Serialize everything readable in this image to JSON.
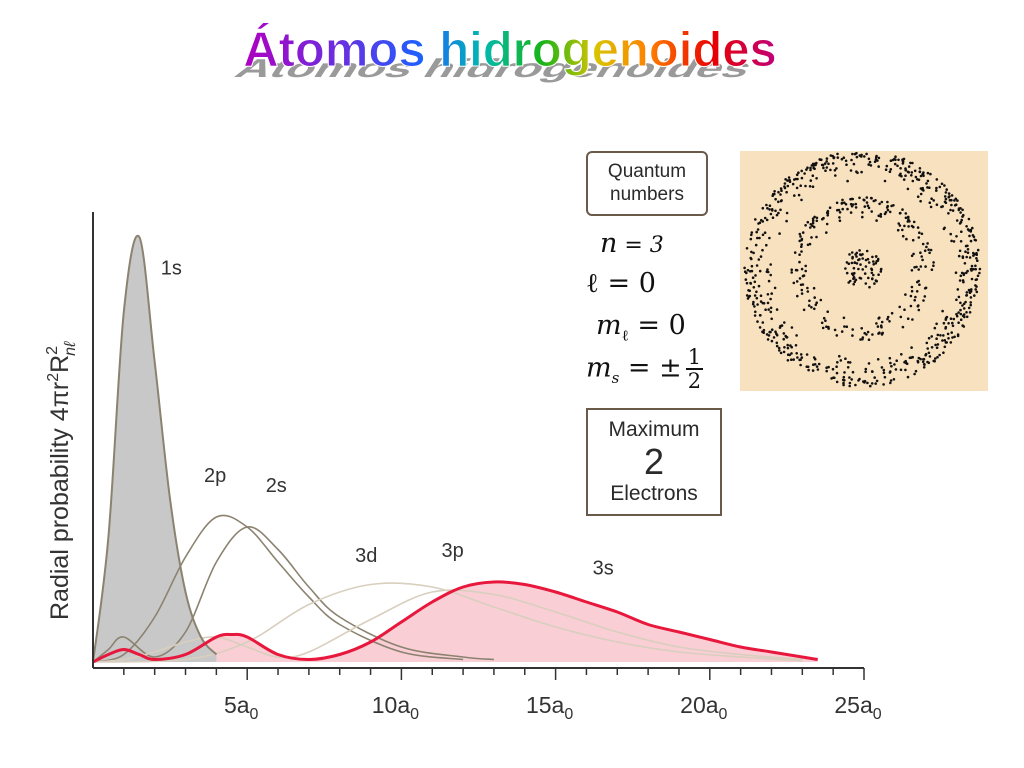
{
  "title": "Átomos hidrogenoides",
  "quantum_box": {
    "line1": "Quantum",
    "line2": "numbers"
  },
  "quantum_numbers": {
    "n_symbol": "n",
    "n_eq": " = 3",
    "l_symbol": "ℓ",
    "l_eq": " = 0",
    "ml_symbol": "m",
    "ml_sub": "ℓ",
    "ml_eq": " = 0",
    "ms_symbol": "m",
    "ms_sub": "s",
    "ms_eq": " = ±",
    "ms_num": "1",
    "ms_den": "2"
  },
  "max_box": {
    "line1": "Maximum",
    "number": "2",
    "line3": "Electrons"
  },
  "colors": {
    "filled_1s": "#c8c8c8",
    "curve_2": "#8c8270",
    "curve_3": "#d8cfbe",
    "highlight": "#e8173c",
    "highlight_fill": "#f9c6ce",
    "orbital_bg": "#f8e1bf"
  },
  "chart_data": {
    "type": "line",
    "title": "",
    "xlabel": "",
    "ylabel": "Radial probability 4πr²R²nℓ",
    "ylabel_main": "Radial probability 4πr",
    "ylabel_sup": "2",
    "ylabel_R": "R",
    "ylabel_sup2": "2",
    "ylabel_sub": "nℓ",
    "xlim": [
      0,
      25
    ],
    "x_unit": "a0",
    "xticks": [
      {
        "value": 5,
        "label": "5a",
        "sub": "0"
      },
      {
        "value": 10,
        "label": "10a",
        "sub": "0"
      },
      {
        "value": 15,
        "label": "15a",
        "sub": "0"
      },
      {
        "value": 20,
        "label": "20a",
        "sub": "0"
      },
      {
        "value": 25,
        "label": "25a",
        "sub": "0"
      }
    ],
    "series": [
      {
        "name": "1s",
        "label_x": 2.2,
        "label_y": 1.55,
        "x": [
          0,
          0.5,
          1,
          1.5,
          2,
          2.5,
          3,
          3.5,
          4
        ],
        "y": [
          0,
          0.5,
          1.4,
          1.7,
          1.2,
          0.65,
          0.28,
          0.1,
          0.03
        ]
      },
      {
        "name": "2p",
        "label_x": 3.6,
        "label_y": 0.72,
        "x": [
          0,
          1,
          2,
          3,
          4,
          5,
          6,
          7,
          8,
          10,
          12
        ],
        "y": [
          0,
          0.03,
          0.18,
          0.42,
          0.58,
          0.54,
          0.4,
          0.26,
          0.15,
          0.04,
          0.01
        ]
      },
      {
        "name": "2s",
        "label_x": 5.6,
        "label_y": 0.68,
        "x": [
          0,
          0.5,
          1,
          2,
          3,
          4,
          5,
          6,
          7,
          8,
          10,
          12,
          13
        ],
        "y": [
          0,
          0.05,
          0.1,
          0.02,
          0.12,
          0.4,
          0.54,
          0.45,
          0.3,
          0.18,
          0.06,
          0.02,
          0.01
        ]
      },
      {
        "name": "3d",
        "label_x": 8.5,
        "label_y": 0.4,
        "x": [
          0,
          3,
          5,
          7,
          9,
          11,
          13,
          15,
          17,
          19,
          21,
          23
        ],
        "y": [
          0,
          0.01,
          0.08,
          0.23,
          0.31,
          0.3,
          0.22,
          0.14,
          0.08,
          0.04,
          0.02,
          0.005
        ]
      },
      {
        "name": "3p",
        "label_x": 11.3,
        "label_y": 0.42,
        "x": [
          0,
          1,
          2,
          3,
          4,
          5,
          6,
          7,
          9,
          11,
          13,
          15,
          17,
          19,
          21,
          23
        ],
        "y": [
          0,
          0.01,
          0.04,
          0.08,
          0.1,
          0.06,
          0.02,
          0.04,
          0.17,
          0.28,
          0.27,
          0.2,
          0.12,
          0.06,
          0.03,
          0.01
        ]
      },
      {
        "name": "3s",
        "label_x": 16.2,
        "label_y": 0.35,
        "x": [
          0,
          0.5,
          1,
          1.5,
          2,
          3,
          4,
          4.5,
          5,
          6,
          7,
          8,
          9,
          10,
          11,
          12,
          13,
          14,
          15,
          16,
          17,
          18,
          19,
          20,
          21,
          22,
          23,
          23.5
        ],
        "y": [
          0,
          0.03,
          0.05,
          0.03,
          0.01,
          0.03,
          0.1,
          0.11,
          0.1,
          0.03,
          0.01,
          0.03,
          0.08,
          0.16,
          0.24,
          0.3,
          0.32,
          0.31,
          0.28,
          0.24,
          0.2,
          0.15,
          0.12,
          0.09,
          0.06,
          0.04,
          0.02,
          0.01
        ]
      }
    ],
    "ylim": [
      0,
      1.8
    ],
    "grid": false,
    "legend": "inline-labels"
  }
}
